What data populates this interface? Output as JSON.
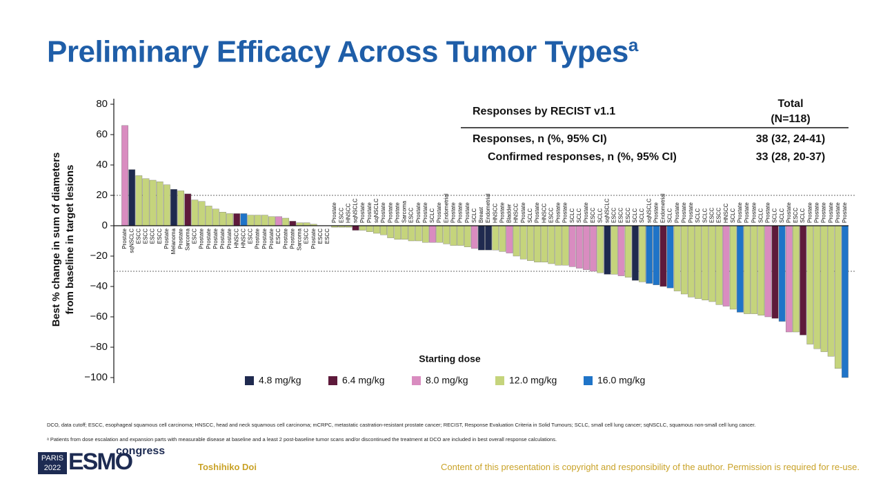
{
  "slide": {
    "title": "Preliminary Efficacy Across Tumor Types",
    "title_sup": "a",
    "table": {
      "header": "Responses by RECIST v1.1",
      "total": "Total",
      "n": "(N=118)",
      "rows": [
        [
          "Responses, n (%, 95% CI)",
          "38 (32, 24-41)"
        ],
        [
          "Confirmed responses, n (%, 95% CI)",
          "33 (28, 20-37)"
        ]
      ]
    },
    "footnotes": [
      "DCO, data cutoff; ESCC, esophageal squamous cell carcinoma; HNSCC, head and neck squamous cell carcinoma; mCRPC, metastatic castration-resistant prostate cancer; RECIST, Response Evaluation Criteria in Solid Tumours; SCLC, small cell lung cancer; sqNSCLC, squamous non-small cell lung cancer.",
      "ᵃ Patients from dose escalation and expansion parts with measurable disease at baseline and a least 2 post-baseline tumor scans and/or discontinued the treatment at DCO are included in best overall response calculations."
    ],
    "logo": {
      "city": "PARIS",
      "year": "2022",
      "brand": "ESMO",
      "word": "congress"
    },
    "author": "Toshihiko Doi",
    "copyright": "Content of this presentation is copyright and responsibility of the author. Permission is required for re-use."
  },
  "chart_data": {
    "type": "waterfall",
    "ylabel": [
      "Best % change in sum of diameters",
      "from baseline in target lesions"
    ],
    "xlabel": "Starting dose",
    "ylim": [
      -100,
      80
    ],
    "yticks": [
      {
        "value": -100,
        "label": "−100"
      },
      {
        "value": -80,
        "label": "−80"
      },
      {
        "value": -60,
        "label": "−60"
      },
      {
        "value": -40,
        "label": "−40"
      },
      {
        "value": -20,
        "label": "−20"
      },
      0,
      20,
      40,
      60,
      80
    ],
    "reference_lines": [
      20,
      -30
    ],
    "series": [
      {
        "name": "4.8 mg/kg",
        "color": "#1f2a4f"
      },
      {
        "name": "6.4 mg/kg",
        "color": "#5e1a3b"
      },
      {
        "name": "8.0 mg/kg",
        "color": "#d98cc0"
      },
      {
        "name": "12.0 mg/kg",
        "color": "#c5d47c"
      },
      {
        "name": "16.0 mg/kg",
        "color": "#1f74c8"
      }
    ],
    "categories": [
      "Prostate",
      "sqNSCLC",
      "ESCC",
      "ESCC",
      "ESCC",
      "ESCC",
      "Prostate",
      "Melanoma",
      "Prostate",
      "Sarcoma",
      "ESCC",
      "Prostate",
      "Prostate",
      "Prostate",
      "Prostate",
      "Prostate",
      "HNSCC",
      "HNSCC",
      "ESCC",
      "Prostate",
      "Prostate",
      "Prostate",
      "ESCC",
      "Prostate",
      "Prostate",
      "Sarcoma",
      "ESCC",
      "Prostate",
      "ESCC",
      "ESCC",
      "Prostate",
      "ESCC",
      "HNSCC",
      "sqNSCLC",
      "Prostate",
      "Prostate",
      "sqNSCLC",
      "Prostate",
      "Prostate",
      "Prostate",
      "Sarcoma",
      "ESCC",
      "Prostate",
      "Prostate",
      "SCLC",
      "Prostate",
      "Endometrial",
      "Prostate",
      "Prostate",
      "Prostate",
      "SCLC",
      "Breast",
      "Endometrial",
      "HNSCC",
      "Prostate",
      "Bladder",
      "HNSCC",
      "Prostate",
      "SCLC",
      "Prostate",
      "HNSCC",
      "ESCC",
      "Prostate",
      "Prostate",
      "SCLC",
      "SCLC",
      "Prostate",
      "ESCC",
      "SCLC",
      "sqNSCLC",
      "ESCC",
      "ESCC",
      "ESCC",
      "SCLC",
      "SCLC",
      "sqNSCLC",
      "Prostate",
      "Endometrial",
      "SCLC",
      "Prostate",
      "Prostate",
      "Prostate",
      "SCLC",
      "SCLC",
      "ESCC",
      "ESCC",
      "HNSCC",
      "SCLC",
      "Prostate",
      "Prostate",
      "Prostate",
      "SCLC",
      "Prostate",
      "SCLC",
      "SCLC",
      "Prostate",
      "ESCC",
      "SCLC",
      "Prostate",
      "Prostate",
      "Prostate",
      "Prostate",
      "Prostate",
      "Prostate"
    ],
    "values": [
      66,
      37,
      33,
      31,
      30,
      29,
      27,
      24,
      23,
      21,
      17,
      16,
      13,
      11,
      9,
      8,
      8,
      8,
      7,
      7,
      7,
      6,
      6,
      5,
      3,
      2,
      2,
      1,
      0,
      0,
      -1,
      -1,
      -1,
      -3,
      -3,
      -4,
      -5,
      -6,
      -8,
      -9,
      -9,
      -10,
      -10,
      -11,
      -11,
      -11,
      -12,
      -13,
      -13,
      -14,
      -15,
      -16,
      -16,
      -16,
      -17,
      -18,
      -20,
      -22,
      -23,
      -24,
      -24,
      -25,
      -26,
      -26,
      -27,
      -28,
      -29,
      -30,
      -31,
      -32,
      -32,
      -33,
      -34,
      -36,
      -37,
      -38,
      -39,
      -40,
      -41,
      -43,
      -45,
      -47,
      -48,
      -49,
      -50,
      -52,
      -53,
      -55,
      -57,
      -58,
      -58,
      -59,
      -60,
      -61,
      -63,
      -70,
      -70,
      -72,
      -78,
      -81,
      -83,
      -86,
      -94,
      -100
    ],
    "dose_index": [
      2,
      0,
      3,
      3,
      3,
      3,
      3,
      0,
      3,
      1,
      3,
      3,
      3,
      3,
      3,
      3,
      1,
      4,
      3,
      3,
      3,
      3,
      2,
      3,
      1,
      3,
      3,
      3,
      3,
      3,
      3,
      3,
      3,
      1,
      3,
      3,
      3,
      3,
      3,
      3,
      3,
      3,
      3,
      3,
      2,
      3,
      3,
      3,
      3,
      3,
      2,
      0,
      0,
      3,
      3,
      2,
      3,
      3,
      3,
      3,
      3,
      3,
      3,
      3,
      2,
      2,
      2,
      2,
      3,
      0,
      3,
      2,
      3,
      0,
      3,
      4,
      4,
      1,
      4,
      3,
      3,
      3,
      3,
      3,
      3,
      3,
      2,
      3,
      4,
      3,
      3,
      3,
      2,
      1,
      4,
      2,
      3,
      1,
      3,
      3,
      3,
      3,
      3,
      4
    ]
  }
}
